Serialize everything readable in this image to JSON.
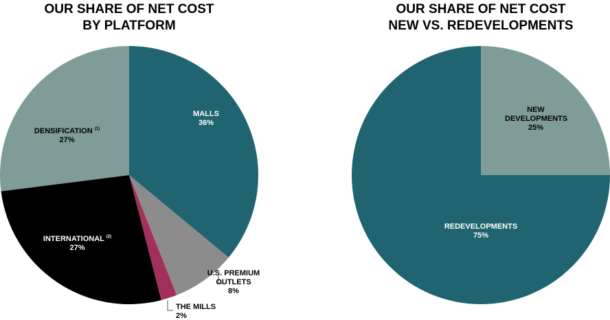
{
  "chart_data": [
    {
      "type": "pie",
      "title": "OUR SHARE OF NET COST",
      "subtitle": "BY PLATFORM",
      "categories": [
        "MALLS",
        "U.S. PREMIUM OUTLETS",
        "THE MILLS",
        "INTERNATIONAL",
        "DENSIFICATION"
      ],
      "category_notes": [
        null,
        null,
        null,
        "(2)",
        "(1)"
      ],
      "values": [
        36,
        8,
        2,
        27,
        27
      ],
      "value_labels": [
        "36%",
        "8%",
        "2%",
        "27%",
        "27%"
      ],
      "colors": [
        "#1f6470",
        "#8c8c8c",
        "#a3305c",
        "#000000",
        "#7f9c98"
      ]
    },
    {
      "type": "pie",
      "title": "OUR SHARE OF NET COST",
      "subtitle": "NEW VS. REDEVELOPMENTS",
      "categories": [
        "NEW DEVELOPMENTS",
        "REDEVELOPMENTS"
      ],
      "values": [
        25,
        75
      ],
      "value_labels": [
        "25%",
        "75%"
      ],
      "colors": [
        "#7f9c98",
        "#1f6470"
      ]
    }
  ]
}
